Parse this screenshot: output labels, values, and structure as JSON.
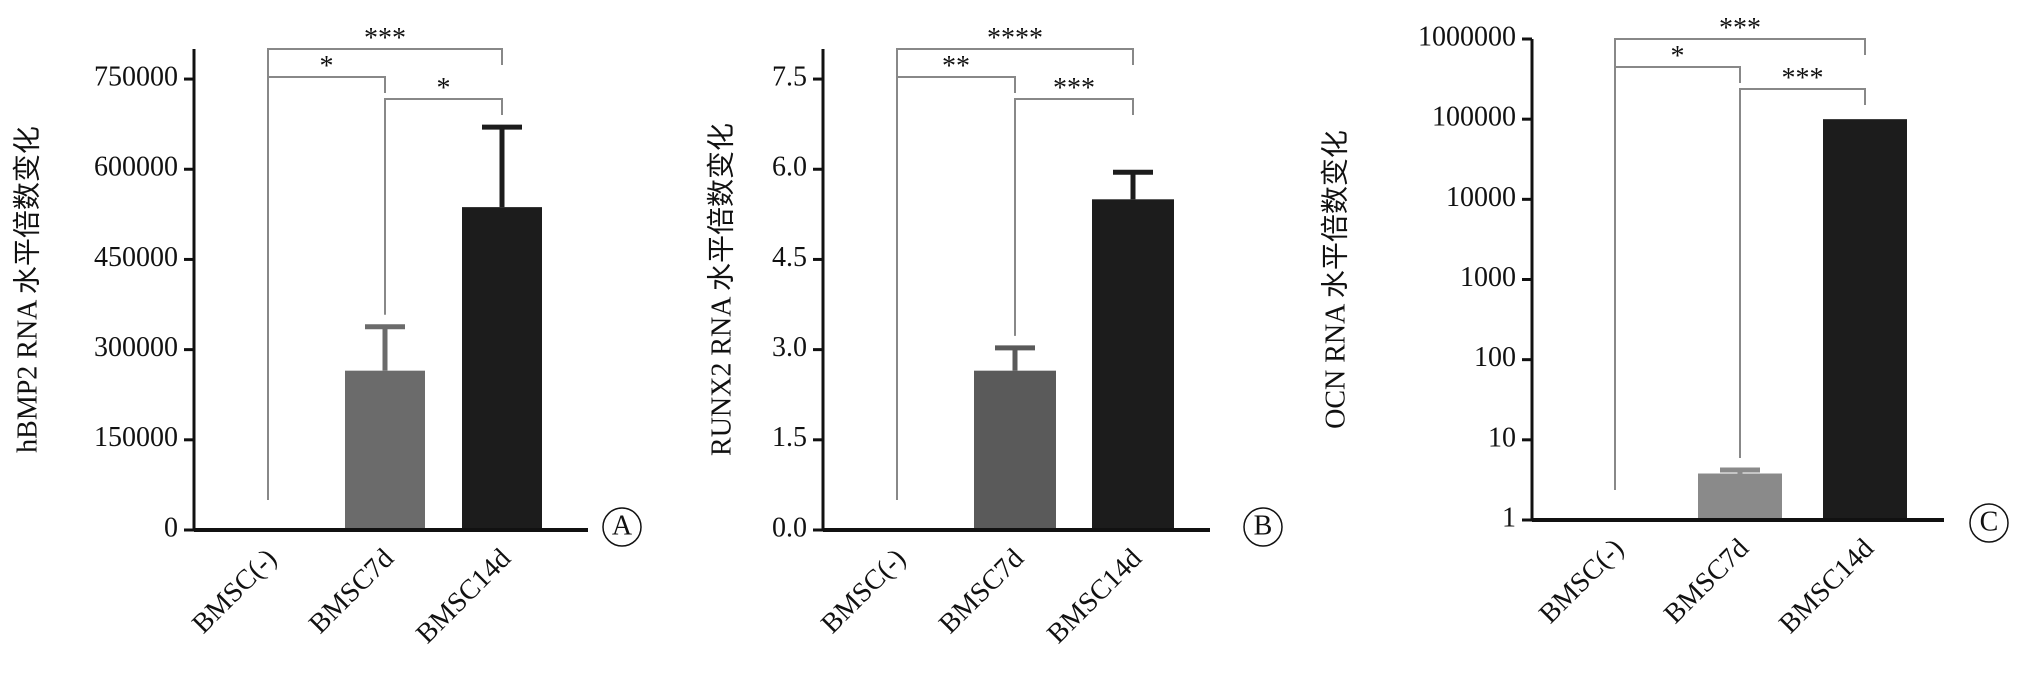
{
  "chart_data": [
    {
      "type": "bar",
      "ylabel": "hBMP2 RNA 水平倍数变化",
      "panel_label": "A",
      "categories": [
        "BMSC(-)",
        "BMSC7d",
        "BMSC14d"
      ],
      "values": [
        0,
        265000,
        537000
      ],
      "errors": [
        0,
        73000,
        133000
      ],
      "colors": [
        "#6b6b6b",
        "#6b6b6b",
        "#1c1c1c"
      ],
      "ylim": [
        0,
        800000
      ],
      "yticks": [
        0,
        150000,
        300000,
        450000,
        600000,
        750000
      ],
      "log_scale": false,
      "brackets": [
        {
          "from": 0,
          "to": 2,
          "label": "***"
        },
        {
          "from": 0,
          "to": 1,
          "label": "*"
        },
        {
          "from": 1,
          "to": 2,
          "label": "*"
        }
      ]
    },
    {
      "type": "bar",
      "ylabel": "RUNX2 RNA 水平倍数变化",
      "panel_label": "B",
      "categories": [
        "BMSC(-)",
        "BMSC7d",
        "BMSC14d"
      ],
      "values": [
        0,
        2.65,
        5.5
      ],
      "errors": [
        0,
        0.38,
        0.45
      ],
      "colors": [
        "#5a5a5a",
        "#5a5a5a",
        "#1c1c1c"
      ],
      "ylim": [
        0,
        8
      ],
      "yticks": [
        {
          "value": 0,
          "label": "0.0"
        },
        {
          "value": 1.5,
          "label": "1.5"
        },
        {
          "value": 3,
          "label": "3.0"
        },
        {
          "value": 4.5,
          "label": "4.5"
        },
        {
          "value": 6,
          "label": "6.0"
        },
        {
          "value": 7.5,
          "label": "7.5"
        }
      ],
      "log_scale": false,
      "brackets": [
        {
          "from": 0,
          "to": 2,
          "label": "****"
        },
        {
          "from": 0,
          "to": 1,
          "label": "**"
        },
        {
          "from": 1,
          "to": 2,
          "label": "***"
        }
      ]
    },
    {
      "type": "bar",
      "ylabel": "OCN RNA 水平倍数变化",
      "panel_label": "C",
      "categories": [
        "BMSC(-)",
        "BMSC7d",
        "BMSC14d"
      ],
      "values": [
        1,
        3.8,
        100000
      ],
      "errors": [
        0,
        0.4,
        0
      ],
      "colors": [
        "#8a8a8a",
        "#8a8a8a",
        "#1c1c1c"
      ],
      "ylim": [
        1,
        1000000
      ],
      "yticks": [
        1,
        10,
        100,
        1000,
        10000,
        100000,
        1000000
      ],
      "log_scale": true,
      "brackets": [
        {
          "from": 0,
          "to": 2,
          "label": "***"
        },
        {
          "from": 0,
          "to": 1,
          "label": "*"
        },
        {
          "from": 1,
          "to": 2,
          "label": "***"
        }
      ]
    }
  ]
}
